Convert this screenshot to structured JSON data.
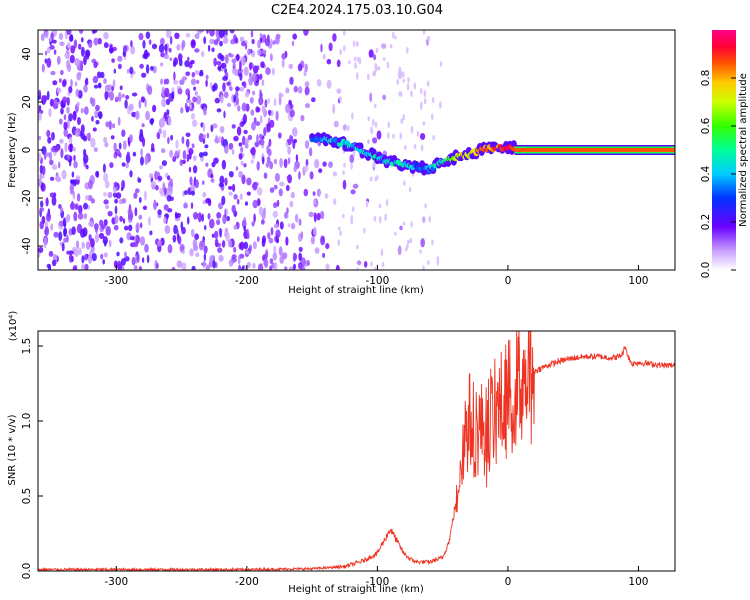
{
  "title": "C2E4.2024.175.03.10.G04",
  "colors": {
    "trace": "#ee3322",
    "scatter": "#7b2fe0",
    "frame": "#000000"
  },
  "chart_data": [
    {
      "type": "heatmap",
      "xlabel": "Height of straight line (km)",
      "ylabel": "Frequency (Hz)",
      "xlim": [
        -360,
        128
      ],
      "ylim": [
        -50,
        50
      ],
      "xticks": [
        -300,
        -200,
        -100,
        0,
        100
      ],
      "yticks": [
        40,
        20,
        0,
        -20,
        -40
      ],
      "colorbar": {
        "label": "Normalized spectral amplitude",
        "range": [
          0.0,
          1.0
        ],
        "ticks": [
          "0.0",
          "0.2",
          "0.4",
          "0.6",
          "0.8"
        ],
        "tick_values": [
          0.0,
          0.2,
          0.4,
          0.6,
          0.8
        ]
      },
      "signal_track": [
        {
          "x": -150,
          "freq": 5,
          "amp": 0.35
        },
        {
          "x": -135,
          "freq": 4,
          "amp": 0.4
        },
        {
          "x": -120,
          "freq": 2,
          "amp": 0.45
        },
        {
          "x": -110,
          "freq": -1,
          "amp": 0.45
        },
        {
          "x": -100,
          "freq": -3,
          "amp": 0.45
        },
        {
          "x": -90,
          "freq": -5,
          "amp": 0.45
        },
        {
          "x": -80,
          "freq": -6,
          "amp": 0.45
        },
        {
          "x": -70,
          "freq": -7,
          "amp": 0.35
        },
        {
          "x": -60,
          "freq": -8,
          "amp": 0.35
        },
        {
          "x": -50,
          "freq": -5,
          "amp": 0.5
        },
        {
          "x": -40,
          "freq": -3,
          "amp": 0.7
        },
        {
          "x": -30,
          "freq": -2,
          "amp": 0.75
        },
        {
          "x": -20,
          "freq": 0,
          "amp": 0.8
        },
        {
          "x": -10,
          "freq": 1,
          "amp": 0.85
        },
        {
          "x": 0,
          "freq": 1,
          "amp": 0.9
        },
        {
          "x": 20,
          "freq": 0,
          "amp": 0.95
        },
        {
          "x": 60,
          "freq": 0,
          "amp": 0.95
        },
        {
          "x": 100,
          "freq": 0,
          "amp": 0.95
        },
        {
          "x": 128,
          "freq": 0,
          "amp": 0.95
        }
      ]
    },
    {
      "type": "line",
      "xlabel": "Height of straight line (km)",
      "ylabel": "SNR (10 * v/v)",
      "scale_label": "(x10⁴)",
      "xlim": [
        -360,
        128
      ],
      "ylim": [
        0.0,
        1.6
      ],
      "xticks": [
        -300,
        -200,
        -100,
        0,
        100
      ],
      "yticks": [
        "0.0",
        "0.5",
        "1.0",
        "1.5"
      ],
      "ytick_values": [
        0.0,
        0.5,
        1.0,
        1.5
      ],
      "series": [
        {
          "name": "SNR",
          "x": [
            -360,
            -300,
            -200,
            -150,
            -125,
            -110,
            -100,
            -95,
            -90,
            -85,
            -80,
            -75,
            -70,
            -60,
            -50,
            -45,
            -40,
            -35,
            -30,
            -25,
            -20,
            -15,
            -10,
            -5,
            0,
            10,
            20,
            30,
            40,
            50,
            60,
            70,
            80,
            85,
            88,
            90,
            92,
            95,
            100,
            110,
            120,
            128
          ],
          "y": [
            0.01,
            0.01,
            0.01,
            0.015,
            0.03,
            0.07,
            0.12,
            0.2,
            0.28,
            0.2,
            0.12,
            0.08,
            0.06,
            0.06,
            0.09,
            0.2,
            0.45,
            0.85,
            1.0,
            0.95,
            0.95,
            1.0,
            1.05,
            1.1,
            1.15,
            1.28,
            1.33,
            1.37,
            1.4,
            1.42,
            1.43,
            1.43,
            1.42,
            1.43,
            1.45,
            1.5,
            1.43,
            1.38,
            1.39,
            1.38,
            1.37,
            1.37
          ]
        }
      ]
    }
  ]
}
